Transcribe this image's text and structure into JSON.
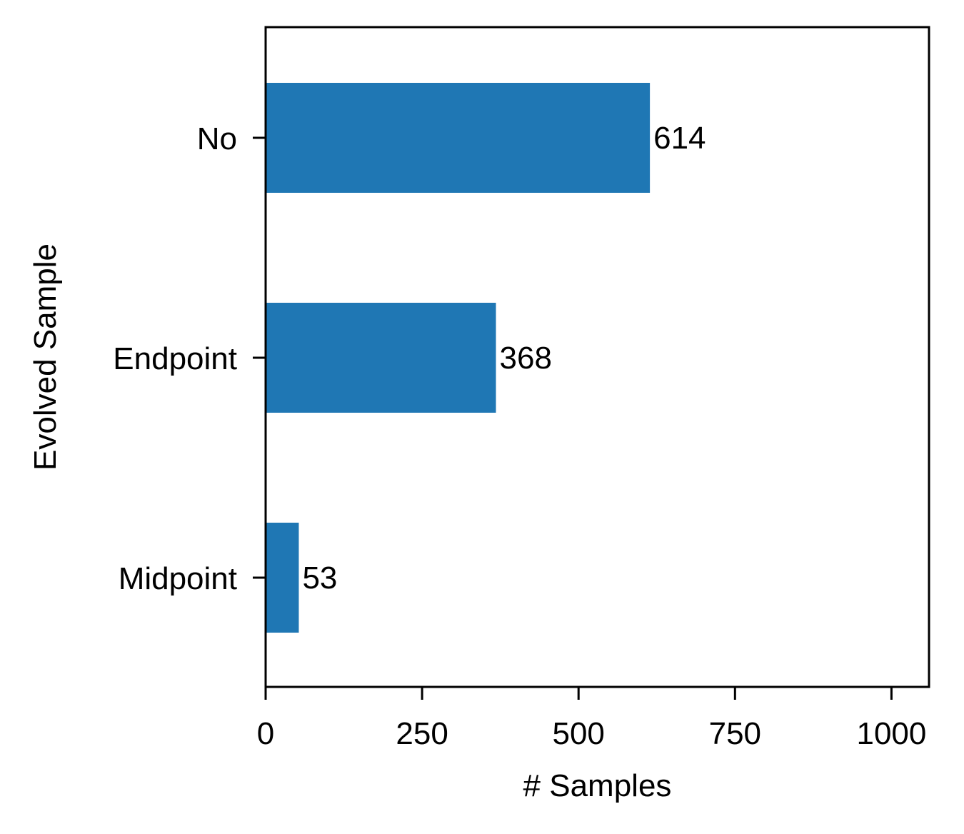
{
  "chart_data": {
    "type": "bar",
    "orientation": "horizontal",
    "categories": [
      "No",
      "Endpoint",
      "Midpoint"
    ],
    "values": [
      614,
      368,
      53
    ],
    "data_labels": [
      "614",
      "368",
      "53"
    ],
    "xlabel": "# Samples",
    "ylabel": "Evolved Sample",
    "xlim": [
      0,
      1060
    ],
    "xticks": [
      0,
      250,
      500,
      750,
      1000
    ],
    "xtick_labels": [
      "0",
      "250",
      "500",
      "750",
      "1000"
    ],
    "grid": false,
    "legend": "none",
    "colors": {
      "bar": "#1f77b4",
      "axis": "#000000",
      "background": "#ffffff"
    }
  }
}
